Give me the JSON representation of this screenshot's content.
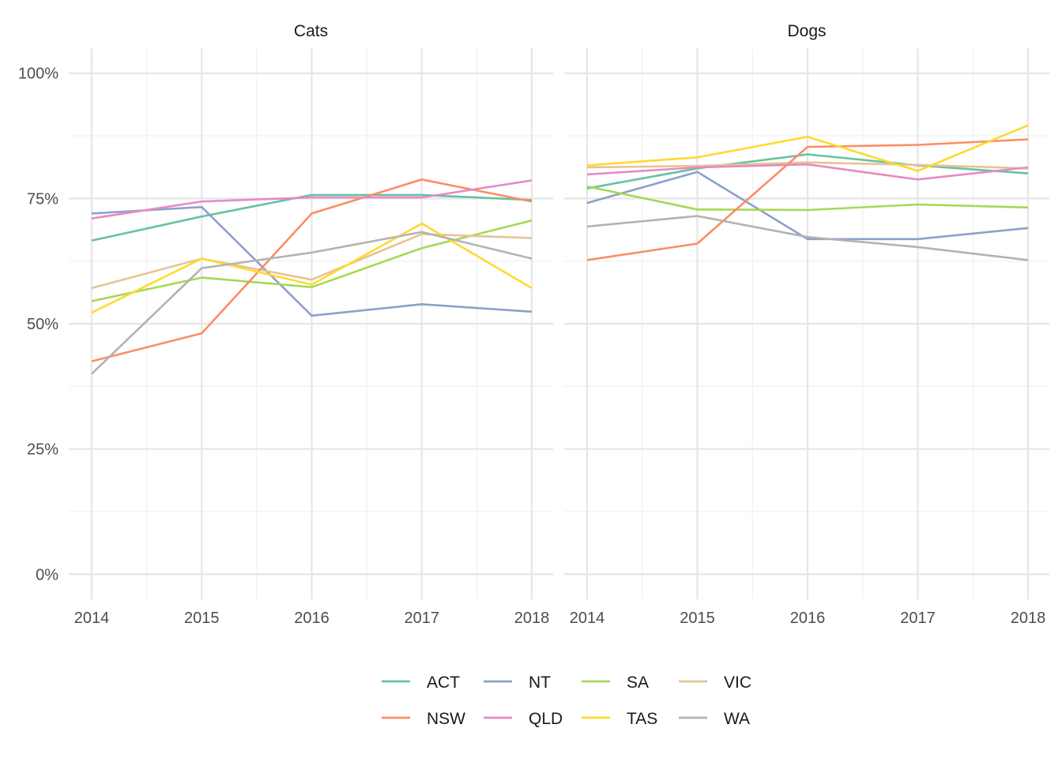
{
  "chart_data": {
    "type": "line",
    "x": [
      2014,
      2015,
      2016,
      2017,
      2018
    ],
    "y_ticks": [
      "0%",
      "25%",
      "50%",
      "75%",
      "100%"
    ],
    "x_ticks": [
      "2014",
      "2015",
      "2016",
      "2017",
      "2018"
    ],
    "ylim": [
      -0.05,
      1.05
    ],
    "grid": true,
    "legend_position": "bottom",
    "legend": [
      {
        "name": "ACT",
        "color": "#66c2a5"
      },
      {
        "name": "NT",
        "color": "#8da0cb"
      },
      {
        "name": "SA",
        "color": "#a6d854"
      },
      {
        "name": "VIC",
        "color": "#e5c494"
      },
      {
        "name": "NSW",
        "color": "#fc8d62"
      },
      {
        "name": "QLD",
        "color": "#e78ac3"
      },
      {
        "name": "TAS",
        "color": "#ffd92f"
      },
      {
        "name": "WA",
        "color": "#b3b3b3"
      }
    ],
    "panels": [
      {
        "title": "Cats",
        "series": [
          {
            "name": "ACT",
            "values": [
              0.666,
              0.714,
              0.757,
              0.757,
              0.747
            ]
          },
          {
            "name": "NT",
            "values": [
              0.72,
              0.733,
              0.516,
              0.539,
              0.524
            ]
          },
          {
            "name": "SA",
            "values": [
              0.545,
              0.592,
              0.573,
              0.651,
              0.706
            ]
          },
          {
            "name": "VIC",
            "values": [
              0.571,
              0.63,
              0.588,
              0.679,
              0.671
            ]
          },
          {
            "name": "NSW",
            "values": [
              0.425,
              0.481,
              0.72,
              0.788,
              0.744
            ]
          },
          {
            "name": "QLD",
            "values": [
              0.71,
              0.744,
              0.752,
              0.752,
              0.786
            ]
          },
          {
            "name": "TAS",
            "values": [
              0.522,
              0.63,
              0.578,
              0.7,
              0.571
            ]
          },
          {
            "name": "WA",
            "values": [
              0.4,
              0.611,
              0.642,
              0.683,
              0.63
            ]
          }
        ]
      },
      {
        "title": "Dogs",
        "series": [
          {
            "name": "ACT",
            "values": [
              0.77,
              0.81,
              0.838,
              0.816,
              0.8
            ]
          },
          {
            "name": "NT",
            "values": [
              0.741,
              0.803,
              0.669,
              0.669,
              0.691
            ]
          },
          {
            "name": "SA",
            "values": [
              0.774,
              0.728,
              0.727,
              0.738,
              0.732
            ]
          },
          {
            "name": "VIC",
            "values": [
              0.812,
              0.815,
              0.822,
              0.817,
              0.81
            ]
          },
          {
            "name": "NSW",
            "values": [
              0.627,
              0.66,
              0.853,
              0.857,
              0.868
            ]
          },
          {
            "name": "QLD",
            "values": [
              0.798,
              0.812,
              0.818,
              0.788,
              0.812
            ]
          },
          {
            "name": "TAS",
            "values": [
              0.816,
              0.832,
              0.873,
              0.805,
              0.896
            ]
          },
          {
            "name": "WA",
            "values": [
              0.694,
              0.715,
              0.673,
              0.653,
              0.627
            ]
          }
        ]
      }
    ]
  }
}
